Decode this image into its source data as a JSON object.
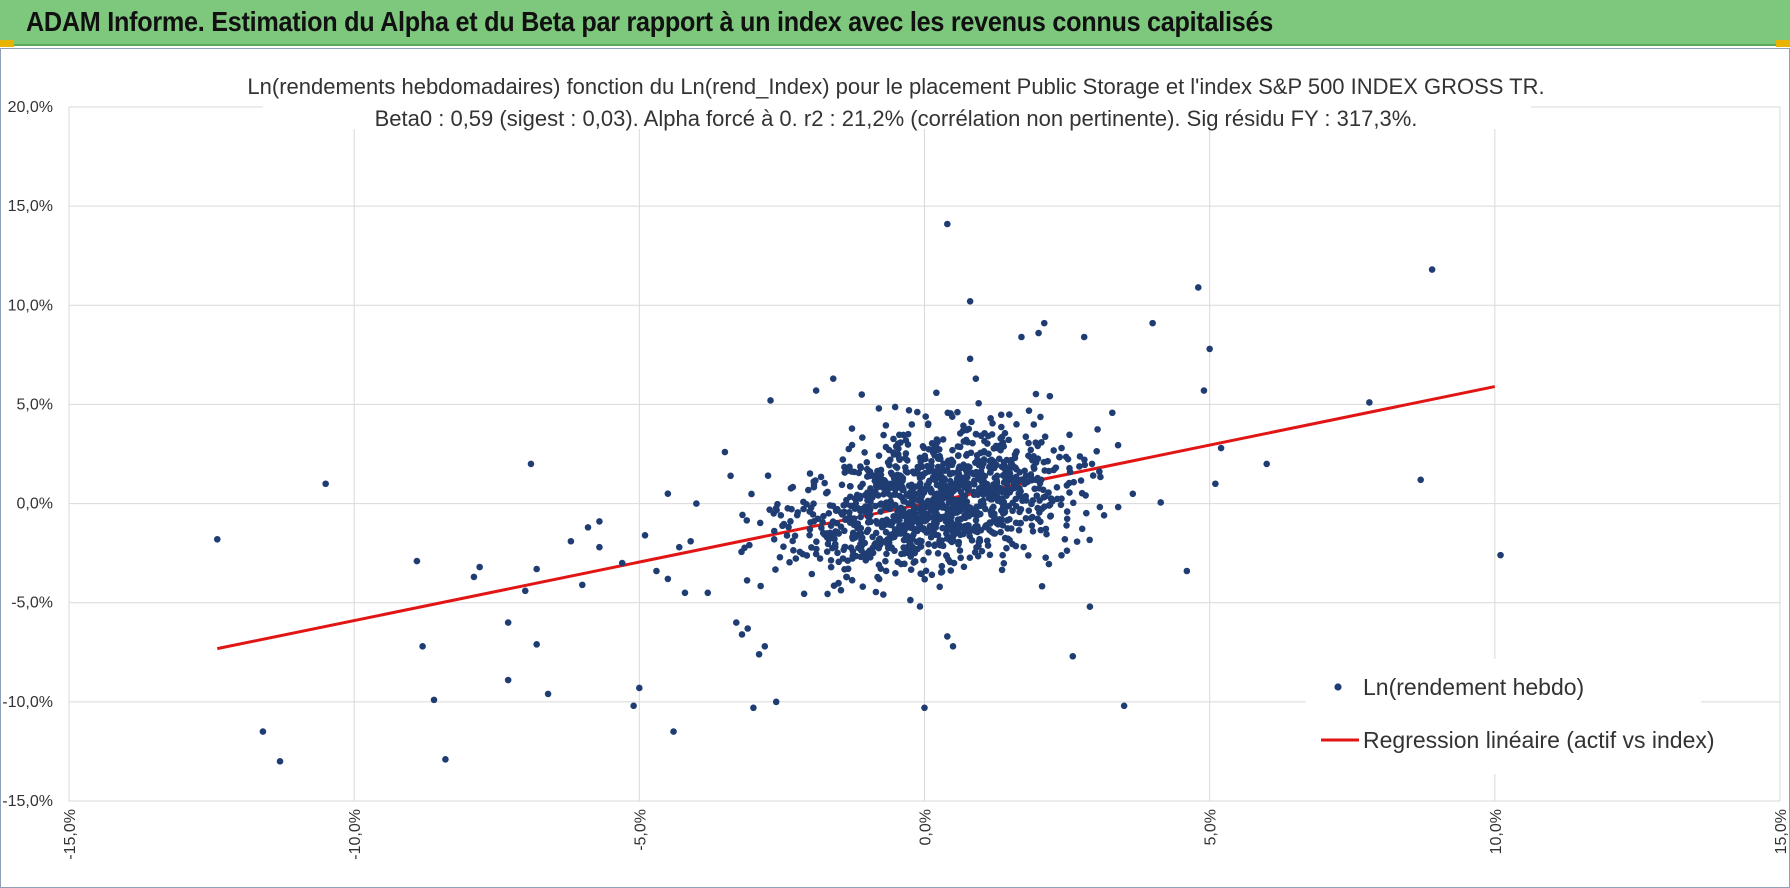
{
  "header": {
    "title": "ADAM Informe. Estimation du Alpha et du Beta par rapport à un index avec les revenus connus capitalisés"
  },
  "colors": {
    "header_bg": "#7ec87e",
    "points": "#1f3d73",
    "regression": "#e21515",
    "grid": "#d9d9d9"
  },
  "chart_data": {
    "type": "scatter",
    "title_line1": "Ln(rendements hebdomadaires) fonction du Ln(rend_Index) pour le placement Public Storage et l'index S&P 500 INDEX GROSS TR.",
    "title_line2": "Beta0 : 0,59 (sigest : 0,03).  Alpha forcé à 0. r2 : 21,2% (corrélation non pertinente). Sig résidu FY : 317,3%.",
    "xlim": [
      -0.15,
      0.15
    ],
    "ylim": [
      -0.15,
      0.2
    ],
    "x_ticks": [
      -0.15,
      -0.1,
      -0.05,
      0.0,
      0.05,
      0.1,
      0.15
    ],
    "x_tick_labels": [
      "-15,0%",
      "-10,0%",
      "-5,0%",
      "0,0%",
      "5,0%",
      "10,0%",
      "15,0%"
    ],
    "y_ticks": [
      0.2,
      0.15,
      0.1,
      0.05,
      0.0,
      -0.05,
      -0.1,
      -0.15
    ],
    "y_tick_labels": [
      "20,0%",
      "15,0%",
      "10,0%",
      "5,0%",
      "0,0%",
      "-5,0%",
      "-10,0%",
      "-15,0%"
    ],
    "grid": true,
    "legend_position": "bottom-right",
    "series": [
      {
        "name": "Ln(rendement hebdo)",
        "type": "scatter",
        "points": [
          [
            -0.124,
            -0.018
          ],
          [
            -0.105,
            0.01
          ],
          [
            -0.116,
            -0.115
          ],
          [
            -0.113,
            -0.13
          ],
          [
            -0.089,
            -0.029
          ],
          [
            -0.088,
            -0.072
          ],
          [
            -0.086,
            -0.099
          ],
          [
            -0.084,
            -0.129
          ],
          [
            -0.079,
            -0.037
          ],
          [
            -0.078,
            -0.032
          ],
          [
            -0.073,
            -0.06
          ],
          [
            -0.073,
            -0.089
          ],
          [
            -0.07,
            -0.044
          ],
          [
            -0.069,
            0.02
          ],
          [
            -0.068,
            -0.033
          ],
          [
            -0.068,
            -0.071
          ],
          [
            -0.066,
            -0.096
          ],
          [
            -0.062,
            -0.019
          ],
          [
            -0.06,
            -0.041
          ],
          [
            -0.059,
            -0.012
          ],
          [
            -0.057,
            -0.022
          ],
          [
            -0.057,
            -0.009
          ],
          [
            -0.053,
            -0.03
          ],
          [
            -0.051,
            -0.102
          ],
          [
            -0.05,
            -0.093
          ],
          [
            -0.049,
            -0.016
          ],
          [
            -0.047,
            -0.034
          ],
          [
            -0.045,
            0.005
          ],
          [
            -0.045,
            -0.038
          ],
          [
            -0.044,
            -0.115
          ],
          [
            -0.043,
            -0.022
          ],
          [
            -0.042,
            -0.045
          ],
          [
            -0.041,
            -0.019
          ],
          [
            -0.04,
            0.0
          ],
          [
            -0.038,
            -0.045
          ],
          [
            -0.035,
            0.026
          ],
          [
            -0.034,
            0.014
          ],
          [
            -0.033,
            -0.06
          ],
          [
            -0.032,
            -0.066
          ],
          [
            -0.031,
            -0.063
          ],
          [
            -0.03,
            -0.103
          ],
          [
            -0.029,
            -0.076
          ],
          [
            -0.028,
            -0.072
          ],
          [
            -0.027,
            0.052
          ],
          [
            -0.026,
            -0.1
          ],
          [
            -0.016,
            0.063
          ],
          [
            -0.019,
            0.057
          ],
          [
            -0.011,
            0.055
          ],
          [
            -0.008,
            0.048
          ],
          [
            0.0,
            -0.103
          ],
          [
            0.004,
            -0.067
          ],
          [
            0.005,
            -0.072
          ],
          [
            0.008,
            0.073
          ],
          [
            0.009,
            0.063
          ],
          [
            0.004,
            0.141
          ],
          [
            0.008,
            0.102
          ],
          [
            0.021,
            0.091
          ],
          [
            0.02,
            0.086
          ],
          [
            0.017,
            0.084
          ],
          [
            0.028,
            0.084
          ],
          [
            0.04,
            0.091
          ],
          [
            0.048,
            0.109
          ],
          [
            0.049,
            0.057
          ],
          [
            0.05,
            0.078
          ],
          [
            0.035,
            -0.102
          ],
          [
            0.026,
            -0.077
          ],
          [
            0.029,
            -0.052
          ],
          [
            0.046,
            -0.034
          ],
          [
            0.06,
            0.02
          ],
          [
            0.078,
            0.051
          ],
          [
            0.087,
            0.012
          ],
          [
            0.089,
            0.118
          ],
          [
            0.101,
            -0.026
          ],
          [
            0.052,
            0.028
          ],
          [
            0.051,
            0.01
          ]
        ]
      },
      {
        "name": "Regression linéaire (actif vs index)",
        "type": "line",
        "slope": 0.59,
        "x_range": [
          -0.124,
          0.1
        ]
      }
    ]
  }
}
